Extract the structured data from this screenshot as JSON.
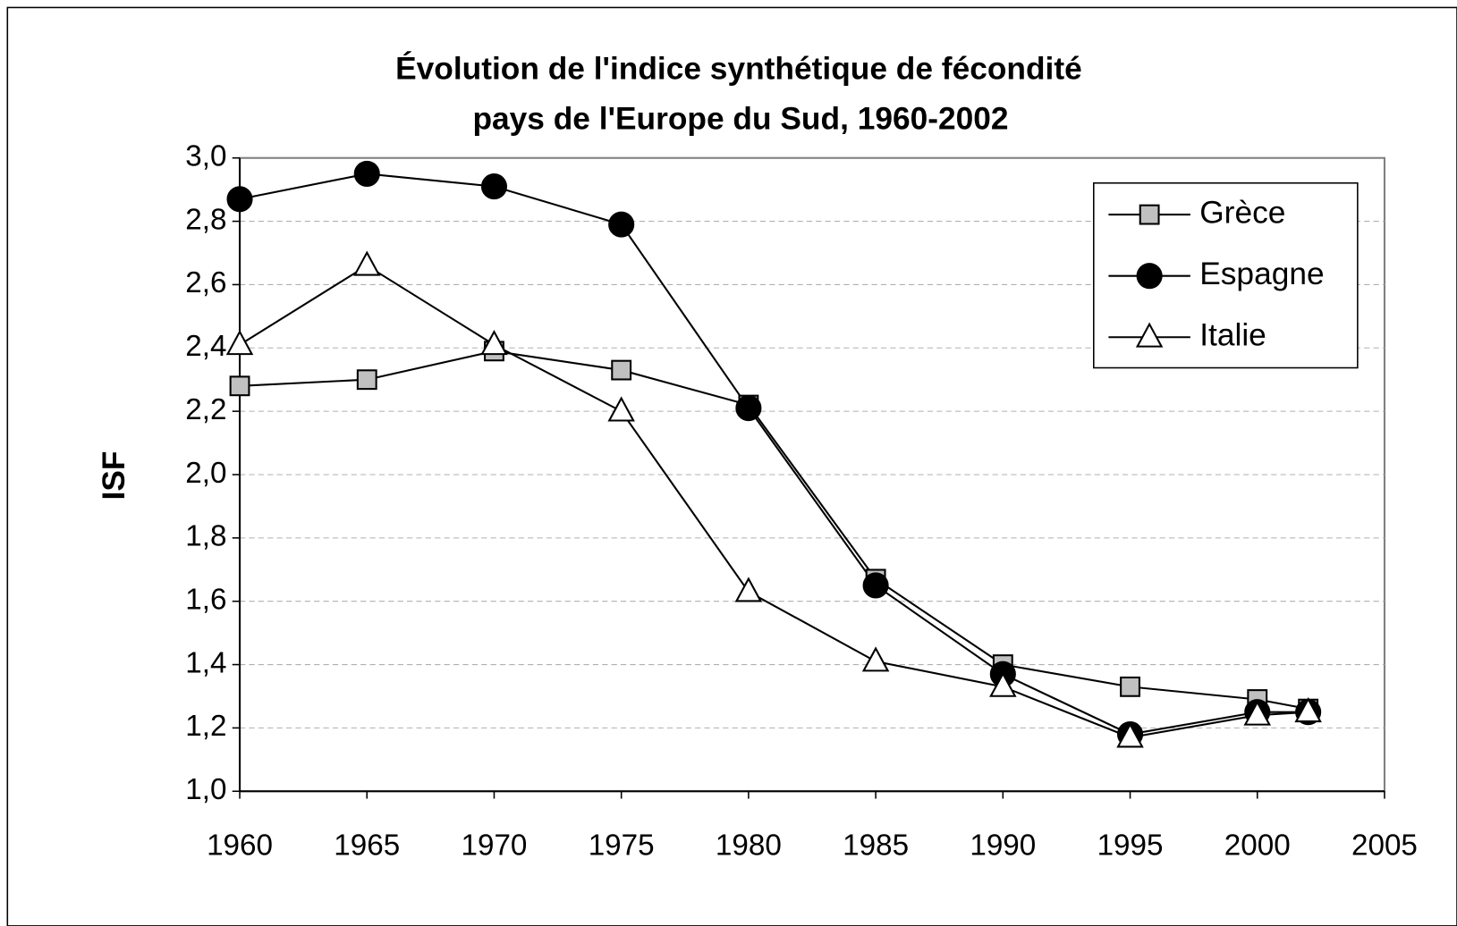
{
  "chart_data": {
    "type": "line",
    "title": [
      "Évolution de l'indice synthétique de fécondité",
      "pays de l'Europe du Sud, 1960-2002"
    ],
    "y_label": "ISF",
    "x": [
      1960,
      1965,
      1970,
      1975,
      1980,
      1985,
      1990,
      1995,
      2000,
      2002
    ],
    "series": [
      {
        "name": "Grèce",
        "color": "#c0c0c0",
        "marker": "square",
        "values": [
          2.28,
          2.3,
          2.39,
          2.33,
          2.22,
          1.67,
          1.4,
          1.33,
          1.29,
          1.26
        ]
      },
      {
        "name": "Espagne",
        "color": "#000000",
        "marker": "circle",
        "values": [
          2.87,
          2.95,
          2.91,
          2.79,
          2.21,
          1.65,
          1.37,
          1.18,
          1.25,
          1.25
        ]
      },
      {
        "name": "Italie",
        "color": "#ffffff",
        "marker": "triangle",
        "values": [
          2.41,
          2.66,
          2.41,
          2.2,
          1.63,
          1.41,
          1.33,
          1.17,
          1.24,
          1.25
        ]
      }
    ],
    "xlim": [
      1960,
      2005
    ],
    "xticks": [
      1960,
      1965,
      1970,
      1975,
      1980,
      1985,
      1990,
      1995,
      2000,
      2005
    ],
    "ylim": [
      1.0,
      3.0
    ],
    "yticks": [
      {
        "value": 1.0,
        "label": "1,0"
      },
      {
        "value": 1.2,
        "label": "1,2"
      },
      {
        "value": 1.4,
        "label": "1,4"
      },
      {
        "value": 1.6,
        "label": "1,6"
      },
      {
        "value": 1.8,
        "label": "1,8"
      },
      {
        "value": 2.0,
        "label": "2,0"
      },
      {
        "value": 2.2,
        "label": "2,2"
      },
      {
        "value": 2.4,
        "label": "2,4"
      },
      {
        "value": 2.6,
        "label": "2,6"
      },
      {
        "value": 2.8,
        "label": "2,8"
      },
      {
        "value": 3.0,
        "label": "3,0"
      }
    ],
    "grid": true,
    "legend": "top-right"
  }
}
